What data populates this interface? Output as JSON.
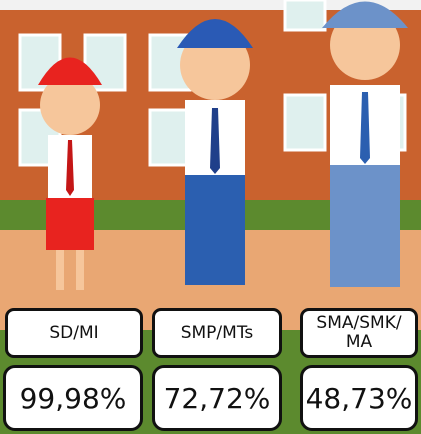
{
  "items": [
    {
      "label": "SD/MI",
      "value": "99,98%"
    },
    {
      "label": "SMP/MTs",
      "value": "72,72%"
    },
    {
      "label": "SMA/SMK/\nMA",
      "value": "48,73%"
    }
  ]
}
